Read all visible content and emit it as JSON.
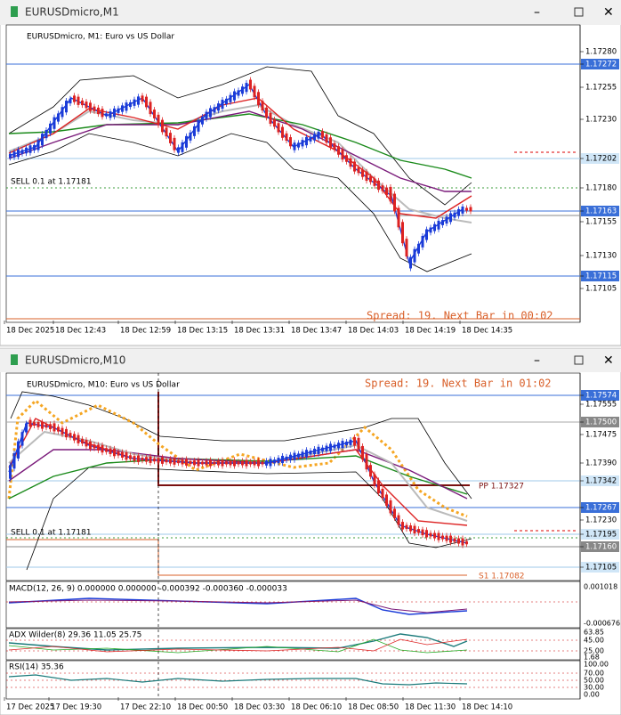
{
  "window1": {
    "title": "EURUSDmicro,M1",
    "symbol_label": "EURUSDmicro, M1:  Euro vs US Dollar",
    "sell_label": "SELL 0.1 at 1.17181",
    "spread_label": "Spread: 19. Next Bar in 00:02",
    "price_axis": [
      "1.17280",
      "1.17272",
      "1.17255",
      "1.17230",
      "1.17202",
      "1.17180",
      "1.17163",
      "1.17155",
      "1.17130",
      "1.17115",
      "1.17105"
    ],
    "time_axis": [
      "18 Dec 2025",
      "18 Dec 12:43",
      "18 Dec 12:59",
      "18 Dec 13:15",
      "18 Dec 13:31",
      "18 Dec 13:47",
      "18 Dec 14:03",
      "18 Dec 14:19",
      "18 Dec 14:35"
    ]
  },
  "window2": {
    "title": "EURUSDmicro,M10",
    "symbol_label": "EURUSDmicro, M10:  Euro vs US Dollar",
    "sell_label": "SELL 0.1 at 1.17181",
    "spread_label": "Spread: 19. Next Bar in 01:02",
    "pp_label": "PP 1.17327",
    "s1_label": "S1 1.17082",
    "price_axis": [
      "1.17574",
      "1.17555",
      "1.17500",
      "1.17475",
      "1.17390",
      "1.17342",
      "1.17267",
      "1.17230",
      "1.17195",
      "1.17160",
      "1.17105"
    ],
    "macd": {
      "label": "MACD(12, 26, 9) 0.000000 0.000000 -0.000392 -0.000360 -0.000033",
      "axis": [
        "0.001018",
        "-0.000676"
      ]
    },
    "adx": {
      "label": "ADX Wilder(8) 29.36 11.05 25.75",
      "axis": [
        "63.85",
        "45.00",
        "25.00",
        "1.68"
      ]
    },
    "rsi": {
      "label": "RSI(14) 35.36",
      "axis": [
        "100.00",
        "70.00",
        "50.00",
        "30.00",
        "0.00"
      ]
    },
    "time_axis": [
      "17 Dec 2025",
      "17 Dec 19:30",
      "17 Dec 22:10",
      "18 Dec 00:50",
      "18 Dec 03:30",
      "18 Dec 06:10",
      "18 Dec 08:50",
      "18 Dec 11:30",
      "18 Dec 14:10"
    ]
  }
}
